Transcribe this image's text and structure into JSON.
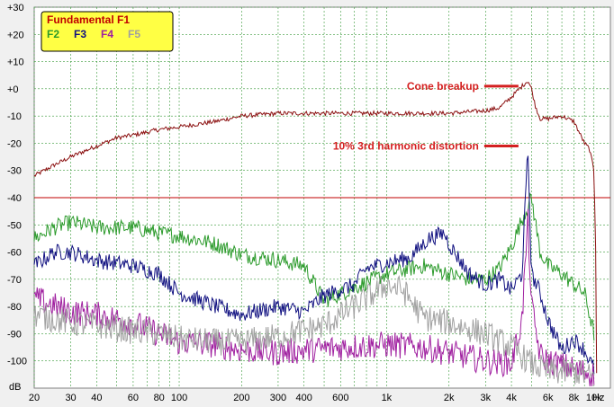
{
  "chart_data": {
    "type": "line",
    "x_scale": "log",
    "xlim": [
      20,
      12000
    ],
    "ylim": [
      -110,
      30
    ],
    "x_unit": "Hz",
    "y_unit": "dB",
    "x_ticks": [
      {
        "v": 20,
        "label": "20"
      },
      {
        "v": 30,
        "label": "30"
      },
      {
        "v": 40,
        "label": "40"
      },
      {
        "v": 60,
        "label": "60"
      },
      {
        "v": 80,
        "label": "80"
      },
      {
        "v": 100,
        "label": "100"
      },
      {
        "v": 200,
        "label": "200"
      },
      {
        "v": 300,
        "label": "300"
      },
      {
        "v": 400,
        "label": "400"
      },
      {
        "v": 600,
        "label": "600"
      },
      {
        "v": 1000,
        "label": "1k"
      },
      {
        "v": 2000,
        "label": "2k"
      },
      {
        "v": 3000,
        "label": "3k"
      },
      {
        "v": 4000,
        "label": "4k"
      },
      {
        "v": 6000,
        "label": "6k"
      },
      {
        "v": 8000,
        "label": "8k"
      },
      {
        "v": 10000,
        "label": "10k"
      }
    ],
    "y_ticks": [
      {
        "v": 30,
        "label": "+30"
      },
      {
        "v": 20,
        "label": "+20"
      },
      {
        "v": 10,
        "label": "+10"
      },
      {
        "v": 0,
        "label": "+0"
      },
      {
        "v": -10,
        "label": "-10"
      },
      {
        "v": -20,
        "label": "-20"
      },
      {
        "v": -30,
        "label": "-30"
      },
      {
        "v": -40,
        "label": "-40"
      },
      {
        "v": -50,
        "label": "-50"
      },
      {
        "v": -60,
        "label": "-60"
      },
      {
        "v": -70,
        "label": "-70"
      },
      {
        "v": -80,
        "label": "-80"
      },
      {
        "v": -90,
        "label": "-90"
      },
      {
        "v": -100,
        "label": "-100"
      }
    ],
    "grid": true,
    "reference_line": {
      "y": -40,
      "color": "#c00000"
    },
    "legend": {
      "placement": "top-left",
      "title": "Fundamental F1",
      "items": [
        {
          "label": "F2",
          "color": "#2a9a2a"
        },
        {
          "label": "F3",
          "color": "#101080"
        },
        {
          "label": "F4",
          "color": "#a020a0"
        },
        {
          "label": "F5",
          "color": "#a0a0a0"
        }
      ]
    },
    "series": [
      {
        "name": "Fundamental F1",
        "color": "#8b1010",
        "jitter": 0.8,
        "points": [
          [
            20,
            -32
          ],
          [
            25,
            -28
          ],
          [
            30,
            -25
          ],
          [
            40,
            -21
          ],
          [
            50,
            -18
          ],
          [
            60,
            -17
          ],
          [
            80,
            -15
          ],
          [
            100,
            -14
          ],
          [
            150,
            -12
          ],
          [
            200,
            -10
          ],
          [
            300,
            -9
          ],
          [
            400,
            -9
          ],
          [
            600,
            -9
          ],
          [
            1000,
            -9
          ],
          [
            1500,
            -9
          ],
          [
            2000,
            -9
          ],
          [
            3000,
            -8
          ],
          [
            3500,
            -7
          ],
          [
            4000,
            -3
          ],
          [
            4500,
            1
          ],
          [
            4800,
            3
          ],
          [
            5000,
            0
          ],
          [
            5200,
            -6
          ],
          [
            5500,
            -11
          ],
          [
            6000,
            -11
          ],
          [
            7000,
            -10
          ],
          [
            8000,
            -12
          ],
          [
            9000,
            -20
          ],
          [
            9500,
            -22
          ],
          [
            10000,
            -30
          ],
          [
            10200,
            -60
          ],
          [
            10300,
            -104
          ]
        ]
      },
      {
        "name": "F2",
        "color": "#2a9a2a",
        "jitter": 3,
        "points": [
          [
            20,
            -55
          ],
          [
            25,
            -51
          ],
          [
            30,
            -49
          ],
          [
            40,
            -51
          ],
          [
            60,
            -51
          ],
          [
            80,
            -53
          ],
          [
            100,
            -54
          ],
          [
            150,
            -57
          ],
          [
            200,
            -61
          ],
          [
            300,
            -63
          ],
          [
            400,
            -65
          ],
          [
            500,
            -78
          ],
          [
            700,
            -73
          ],
          [
            1000,
            -68
          ],
          [
            1500,
            -65
          ],
          [
            2000,
            -68
          ],
          [
            2500,
            -70
          ],
          [
            3000,
            -70
          ],
          [
            3500,
            -66
          ],
          [
            4000,
            -58
          ],
          [
            4500,
            -48
          ],
          [
            5000,
            -40
          ],
          [
            5500,
            -60
          ],
          [
            6000,
            -65
          ],
          [
            7000,
            -68
          ],
          [
            8000,
            -72
          ],
          [
            9000,
            -75
          ],
          [
            10000,
            -90
          ]
        ]
      },
      {
        "name": "F3",
        "color": "#101080",
        "jitter": 3,
        "points": [
          [
            20,
            -65
          ],
          [
            25,
            -60
          ],
          [
            30,
            -60
          ],
          [
            40,
            -63
          ],
          [
            60,
            -65
          ],
          [
            80,
            -68
          ],
          [
            100,
            -75
          ],
          [
            150,
            -80
          ],
          [
            200,
            -83
          ],
          [
            300,
            -80
          ],
          [
            400,
            -82
          ],
          [
            500,
            -76
          ],
          [
            700,
            -72
          ],
          [
            800,
            -66
          ],
          [
            1000,
            -64
          ],
          [
            1300,
            -62
          ],
          [
            1600,
            -55
          ],
          [
            1900,
            -53
          ],
          [
            2000,
            -57
          ],
          [
            2500,
            -68
          ],
          [
            3000,
            -72
          ],
          [
            3500,
            -70
          ],
          [
            4000,
            -74
          ],
          [
            4500,
            -68
          ],
          [
            4800,
            -22
          ],
          [
            5000,
            -68
          ],
          [
            5500,
            -75
          ],
          [
            6000,
            -85
          ],
          [
            7000,
            -96
          ],
          [
            8000,
            -92
          ],
          [
            9000,
            -96
          ],
          [
            10000,
            -103
          ]
        ]
      },
      {
        "name": "F4",
        "color": "#a020a0",
        "jitter": 5,
        "points": [
          [
            20,
            -77
          ],
          [
            30,
            -82
          ],
          [
            40,
            -83
          ],
          [
            60,
            -86
          ],
          [
            80,
            -90
          ],
          [
            100,
            -93
          ],
          [
            150,
            -94
          ],
          [
            200,
            -96
          ],
          [
            300,
            -97
          ],
          [
            400,
            -96
          ],
          [
            600,
            -95
          ],
          [
            1000,
            -94
          ],
          [
            1500,
            -95
          ],
          [
            2000,
            -97
          ],
          [
            3000,
            -100
          ],
          [
            4000,
            -101
          ],
          [
            4500,
            -85
          ],
          [
            4800,
            -48
          ],
          [
            5000,
            -80
          ],
          [
            5500,
            -98
          ],
          [
            6000,
            -100
          ],
          [
            8000,
            -103
          ],
          [
            10000,
            -105
          ]
        ]
      },
      {
        "name": "F5",
        "color": "#a0a0a0",
        "jitter": 5,
        "points": [
          [
            20,
            -83
          ],
          [
            30,
            -86
          ],
          [
            40,
            -87
          ],
          [
            60,
            -89
          ],
          [
            80,
            -90
          ],
          [
            100,
            -92
          ],
          [
            150,
            -93
          ],
          [
            200,
            -93
          ],
          [
            300,
            -91
          ],
          [
            500,
            -87
          ],
          [
            700,
            -80
          ],
          [
            1000,
            -72
          ],
          [
            1200,
            -74
          ],
          [
            1500,
            -84
          ],
          [
            2000,
            -86
          ],
          [
            3000,
            -90
          ],
          [
            4000,
            -95
          ],
          [
            5000,
            -101
          ],
          [
            6000,
            -104
          ],
          [
            8000,
            -104
          ],
          [
            10000,
            -106
          ]
        ]
      }
    ],
    "annotations": [
      {
        "text": "Cone breakup",
        "x": 4500,
        "y": 1
      },
      {
        "text": "10% 3rd harmonic distortion",
        "x": 4500,
        "y": -21
      }
    ]
  }
}
